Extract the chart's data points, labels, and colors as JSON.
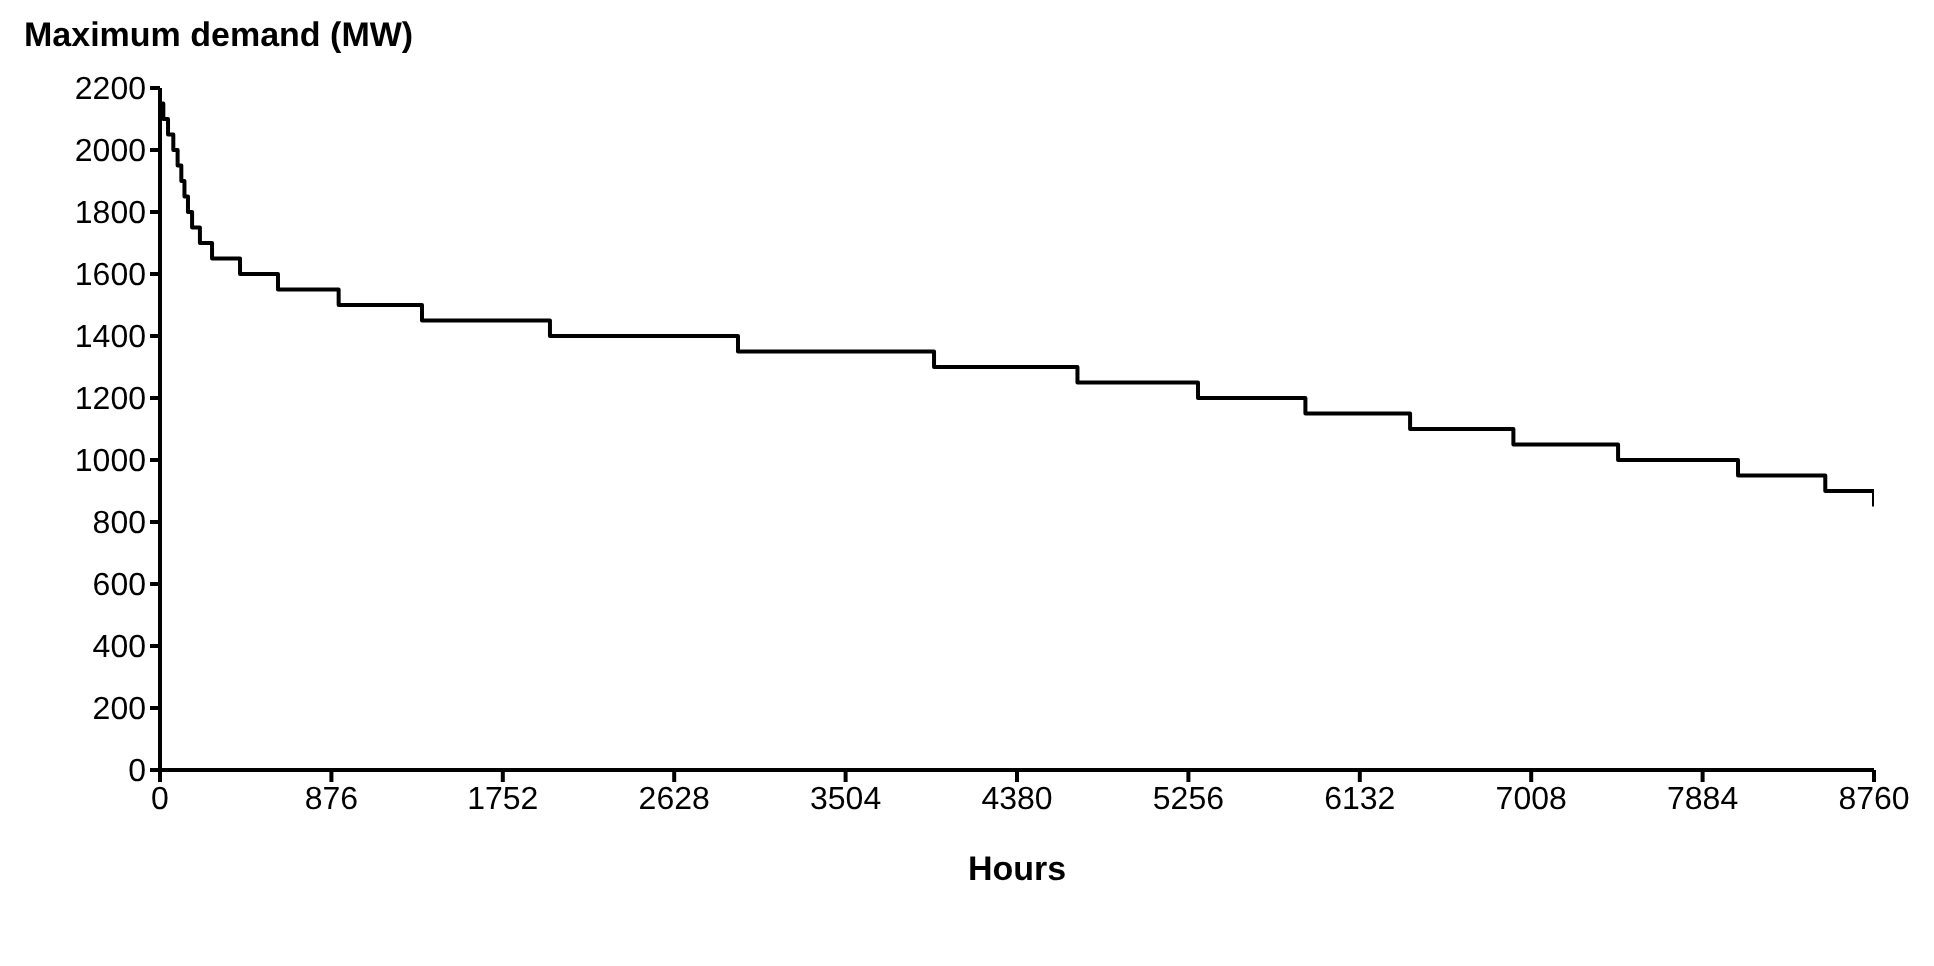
{
  "chart_data": {
    "type": "step",
    "ylabel": "Maximum demand (MW)",
    "xlabel": "Hours",
    "x": [
      0,
      17,
      41,
      68,
      90,
      109,
      125,
      143,
      164,
      204,
      266,
      409,
      603,
      913,
      1339,
      1993,
      2954,
      3956,
      4689,
      5305,
      5854,
      6389,
      6917,
      7452,
      8065,
      8511,
      8760
    ],
    "series": [
      {
        "color": "#000000",
        "values": [
          2150,
          2100,
          2050,
          2000,
          1950,
          1900,
          1850,
          1800,
          1750,
          1700,
          1650,
          1600,
          1550,
          1500,
          1450,
          1400,
          1350,
          1300,
          1250,
          1200,
          1150,
          1100,
          1050,
          1000,
          950,
          900,
          850
        ]
      }
    ],
    "xlim": [
      0,
      8760
    ],
    "xticks": [
      0,
      876,
      1752,
      2628,
      3504,
      4380,
      5256,
      6132,
      7008,
      7884,
      8760
    ],
    "ylim": [
      0,
      2200
    ],
    "yticks": [
      0,
      200,
      400,
      600,
      800,
      1000,
      1200,
      1400,
      1600,
      1800,
      2000,
      2200
    ],
    "grid": false,
    "legend": false,
    "marker": "none",
    "line_style": "solid"
  }
}
